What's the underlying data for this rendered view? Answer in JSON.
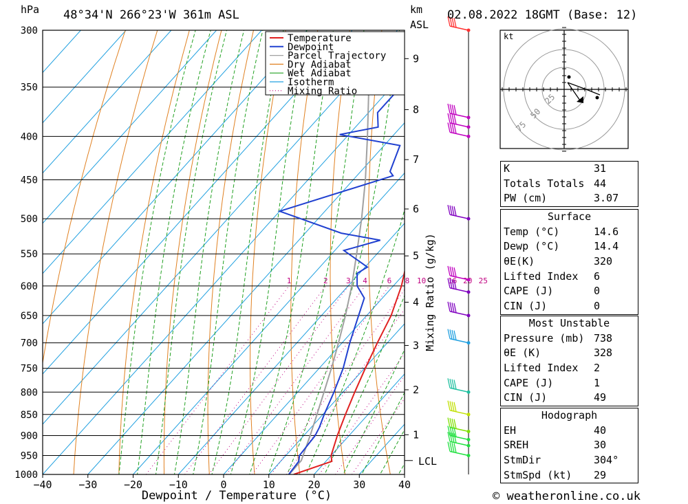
{
  "header": {
    "location": "48°34'N 266°23'W 361m ASL",
    "datetime": "02.08.2022 18GMT (Base: 12)",
    "hpa_unit": "hPa",
    "km_unit": "km",
    "asl_unit": "ASL"
  },
  "footer": {
    "copyright": "© weatheronline.co.uk"
  },
  "chart_data": {
    "type": "line",
    "title": "48°34'N 266°23'W 361m ASL",
    "xlabel": "Dewpoint / Temperature (°C)",
    "ylabel": "hPa",
    "right_label": "Mixing Ratio (g/kg)",
    "x_ticks": [
      -40,
      -30,
      -20,
      -10,
      0,
      10,
      20,
      30,
      40
    ],
    "pressure_levels": [
      300,
      350,
      400,
      450,
      500,
      550,
      600,
      650,
      700,
      750,
      800,
      850,
      900,
      950,
      1000
    ],
    "km_ticks": [
      {
        "label": "9",
        "p": 324
      },
      {
        "label": "8",
        "p": 372
      },
      {
        "label": "7",
        "p": 426
      },
      {
        "label": "6",
        "p": 487
      },
      {
        "label": "5",
        "p": 553
      },
      {
        "label": "4",
        "p": 627
      },
      {
        "label": "3",
        "p": 705
      },
      {
        "label": "2",
        "p": 795
      },
      {
        "label": "1",
        "p": 898
      }
    ],
    "lcl": {
      "label": "LCL",
      "p": 963
    },
    "mixing_ratio_labels": [
      "1",
      "2",
      "3",
      "4",
      "6",
      "8",
      "10",
      "16",
      "20",
      "25"
    ],
    "legend": [
      "Temperature",
      "Dewpoint",
      "Parcel Trajectory",
      "Dry Adiabat",
      "Wet Adiabat",
      "Isotherm",
      "Mixing Ratio"
    ],
    "colors": {
      "temperature": "#e02020",
      "dewpoint": "#2040d0",
      "parcel": "#a0a0a0",
      "dry_adiabat": "#e08020",
      "wet_adiabat": "#20a020",
      "isotherm": "#20a0e0",
      "mixing_ratio": "#c00080"
    },
    "series": [
      {
        "name": "Temperature",
        "points": [
          [
            1000,
            15.5
          ],
          [
            965,
            21.3
          ],
          [
            950,
            20.0
          ],
          [
            900,
            17.4
          ],
          [
            850,
            15.0
          ],
          [
            800,
            12.6
          ],
          [
            750,
            10.2
          ],
          [
            700,
            7.8
          ],
          [
            650,
            5.4
          ],
          [
            600,
            1.8
          ],
          [
            550,
            -3.0
          ],
          [
            500,
            -7.5
          ],
          [
            450,
            -13.0
          ],
          [
            420,
            -17.5
          ],
          [
            400,
            -21.5
          ],
          [
            390,
            -22.0
          ],
          [
            350,
            -28.8
          ],
          [
            300,
            -37.0
          ]
        ]
      },
      {
        "name": "Dewpoint",
        "points": [
          [
            1000,
            14.4
          ],
          [
            965,
            14.0
          ],
          [
            950,
            13.0
          ],
          [
            900,
            12.5
          ],
          [
            880,
            11.8
          ],
          [
            850,
            10.3
          ],
          [
            800,
            8.0
          ],
          [
            750,
            5.3
          ],
          [
            700,
            1.7
          ],
          [
            650,
            -1.8
          ],
          [
            620,
            -4.0
          ],
          [
            600,
            -8.0
          ],
          [
            580,
            -10.5
          ],
          [
            570,
            -9.5
          ],
          [
            545,
            -18.0
          ],
          [
            530,
            -12.0
          ],
          [
            520,
            -22.0
          ],
          [
            490,
            -40.0
          ],
          [
            445,
            -22.0
          ],
          [
            440,
            -23.5
          ],
          [
            410,
            -26.5
          ],
          [
            398,
            -42.0
          ],
          [
            390,
            -35.0
          ],
          [
            375,
            -38.0
          ],
          [
            350,
            -38.0
          ],
          [
            340,
            -40.0
          ],
          [
            320,
            -47.0
          ],
          [
            300,
            -47.5
          ]
        ]
      },
      {
        "name": "Parcel Trajectory",
        "points": [
          [
            1000,
            14.5
          ],
          [
            963,
            14.4
          ],
          [
            900,
            11.4
          ],
          [
            850,
            8.7
          ],
          [
            800,
            5.8
          ],
          [
            750,
            2.7
          ],
          [
            700,
            -0.8
          ],
          [
            650,
            -4.7
          ],
          [
            600,
            -9.2
          ],
          [
            550,
            -14.5
          ],
          [
            500,
            -20.4
          ],
          [
            450,
            -27.3
          ],
          [
            400,
            -35.5
          ],
          [
            350,
            -45.0
          ],
          [
            305,
            -55.0
          ]
        ]
      }
    ],
    "winds": [
      {
        "p": 300,
        "color": "#ff3030"
      },
      {
        "p": 380,
        "color": "#c000c0"
      },
      {
        "p": 390,
        "color": "#c000c0"
      },
      {
        "p": 400,
        "color": "#c000c0"
      },
      {
        "p": 500,
        "color": "#8000c0"
      },
      {
        "p": 590,
        "color": "#c000c0"
      },
      {
        "p": 610,
        "color": "#8000c0"
      },
      {
        "p": 650,
        "color": "#8000c0"
      },
      {
        "p": 700,
        "color": "#20a0e0"
      },
      {
        "p": 800,
        "color": "#20c0a0"
      },
      {
        "p": 850,
        "color": "#c0e000"
      },
      {
        "p": 890,
        "color": "#80e000"
      },
      {
        "p": 910,
        "color": "#20e040"
      },
      {
        "p": 925,
        "color": "#20e040"
      },
      {
        "p": 950,
        "color": "#20e040"
      }
    ]
  },
  "hodograph": {
    "unit": "kt",
    "ring_labels": [
      "25",
      "50",
      "75"
    ]
  },
  "indices": {
    "top": [
      {
        "label": "K",
        "value": "31"
      },
      {
        "label": "Totals Totals",
        "value": "44"
      },
      {
        "label": "PW (cm)",
        "value": "3.07"
      }
    ],
    "surface": {
      "title": "Surface",
      "rows": [
        {
          "label": "Temp (°C)",
          "value": "14.6"
        },
        {
          "label": "Dewp (°C)",
          "value": "14.4"
        },
        {
          "label": "θE(K)",
          "value": "320"
        },
        {
          "label": "Lifted Index",
          "value": "6"
        },
        {
          "label": "CAPE (J)",
          "value": "0"
        },
        {
          "label": "CIN (J)",
          "value": "0"
        }
      ]
    },
    "most_unstable": {
      "title": "Most Unstable",
      "rows": [
        {
          "label": "Pressure (mb)",
          "value": "738"
        },
        {
          "label": "θE (K)",
          "value": "328"
        },
        {
          "label": "Lifted Index",
          "value": "2"
        },
        {
          "label": "CAPE (J)",
          "value": "1"
        },
        {
          "label": "CIN (J)",
          "value": "49"
        }
      ]
    },
    "hodograph_table": {
      "title": "Hodograph",
      "rows": [
        {
          "label": "EH",
          "value": "40"
        },
        {
          "label": "SREH",
          "value": "30"
        },
        {
          "label": "StmDir",
          "value": "304°"
        },
        {
          "label": "StmSpd (kt)",
          "value": "29"
        }
      ]
    }
  }
}
